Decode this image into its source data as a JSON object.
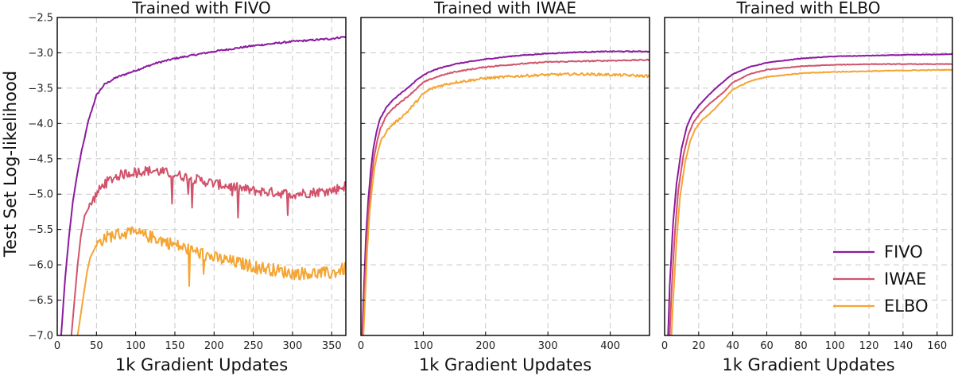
{
  "figure": {
    "ylabel": "Test Set Log-likelihood",
    "colors": {
      "FIVO": "#8b1a9e",
      "IWAE": "#d1536b",
      "ELBO": "#f5a533"
    }
  },
  "chart_data": [
    {
      "type": "line",
      "title": "Trained with FIVO",
      "xlabel": "1k Gradient Updates",
      "xlim": [
        0,
        368
      ],
      "ylim": [
        -7.0,
        -2.5
      ],
      "xticks": [
        0,
        50,
        100,
        150,
        200,
        250,
        300,
        350
      ],
      "yticks": [
        -7.0,
        -6.5,
        -6.0,
        -5.5,
        -5.0,
        -4.5,
        -4.0,
        -3.5,
        -3.0,
        -2.5
      ],
      "grid": true,
      "series": [
        {
          "name": "FIVO",
          "x": [
            5,
            10,
            15,
            20,
            25,
            30,
            40,
            50,
            60,
            75,
            100,
            125,
            150,
            200,
            250,
            300,
            350,
            368
          ],
          "y": [
            -7.0,
            -6.2,
            -5.6,
            -5.1,
            -4.75,
            -4.45,
            -3.95,
            -3.6,
            -3.45,
            -3.35,
            -3.25,
            -3.15,
            -3.08,
            -2.98,
            -2.9,
            -2.84,
            -2.8,
            -2.77
          ]
        },
        {
          "name": "IWAE",
          "x": [
            18,
            22,
            26,
            30,
            35,
            40,
            50,
            60,
            75,
            90,
            110,
            125,
            150,
            200,
            250,
            300,
            350,
            368
          ],
          "y": [
            -7.0,
            -6.5,
            -6.0,
            -5.6,
            -5.3,
            -5.2,
            -5.0,
            -4.85,
            -4.75,
            -4.7,
            -4.67,
            -4.67,
            -4.72,
            -4.85,
            -4.95,
            -5.0,
            -4.95,
            -4.88
          ]
        },
        {
          "name": "ELBO",
          "x": [
            26,
            30,
            34,
            38,
            42,
            50,
            60,
            75,
            90,
            105,
            125,
            150,
            200,
            250,
            300,
            350,
            368
          ],
          "y": [
            -7.0,
            -6.7,
            -6.4,
            -6.1,
            -5.9,
            -5.72,
            -5.62,
            -5.57,
            -5.55,
            -5.57,
            -5.62,
            -5.72,
            -5.9,
            -6.02,
            -6.12,
            -6.12,
            -6.05
          ]
        }
      ]
    },
    {
      "type": "line",
      "title": "Trained with IWAE",
      "xlabel": "1k Gradient Updates",
      "xlim": [
        0,
        463
      ],
      "ylim": [
        -7.0,
        -2.5
      ],
      "xticks": [
        0,
        100,
        200,
        300,
        400
      ],
      "grid": true,
      "series": [
        {
          "name": "FIVO",
          "x": [
            2,
            5,
            8,
            12,
            16,
            20,
            25,
            30,
            40,
            50,
            60,
            75,
            90,
            100,
            110,
            125,
            150,
            200,
            250,
            300,
            350,
            400,
            463
          ],
          "y": [
            -7.0,
            -6.3,
            -5.6,
            -5.05,
            -4.65,
            -4.35,
            -4.12,
            -3.95,
            -3.78,
            -3.68,
            -3.6,
            -3.5,
            -3.38,
            -3.32,
            -3.27,
            -3.22,
            -3.16,
            -3.09,
            -3.04,
            -3.01,
            -2.99,
            -2.98,
            -2.98
          ]
        },
        {
          "name": "IWAE",
          "x": [
            3,
            6,
            9,
            13,
            17,
            21,
            26,
            31,
            40,
            50,
            60,
            75,
            90,
            100,
            110,
            125,
            150,
            200,
            250,
            300,
            350,
            400,
            463
          ],
          "y": [
            -7.0,
            -6.35,
            -5.7,
            -5.15,
            -4.78,
            -4.48,
            -4.25,
            -4.08,
            -3.9,
            -3.8,
            -3.72,
            -3.62,
            -3.5,
            -3.42,
            -3.38,
            -3.33,
            -3.27,
            -3.2,
            -3.16,
            -3.13,
            -3.12,
            -3.11,
            -3.1
          ]
        },
        {
          "name": "ELBO",
          "x": [
            4,
            7,
            10,
            14,
            18,
            22,
            27,
            32,
            40,
            50,
            60,
            75,
            90,
            100,
            110,
            125,
            150,
            200,
            250,
            300,
            350,
            400,
            463
          ],
          "y": [
            -7.0,
            -6.4,
            -5.8,
            -5.25,
            -4.9,
            -4.62,
            -4.4,
            -4.25,
            -4.12,
            -4.02,
            -3.95,
            -3.83,
            -3.68,
            -3.58,
            -3.52,
            -3.47,
            -3.42,
            -3.36,
            -3.33,
            -3.31,
            -3.3,
            -3.31,
            -3.33
          ]
        }
      ]
    },
    {
      "type": "line",
      "title": "Trained with ELBO",
      "xlabel": "1k Gradient Updates",
      "xlim": [
        0,
        169
      ],
      "ylim": [
        -7.0,
        -2.5
      ],
      "xticks": [
        0,
        20,
        40,
        60,
        80,
        100,
        120,
        140,
        160
      ],
      "grid": true,
      "legend": {
        "position": "bottom-right",
        "entries": [
          "FIVO",
          "IWAE",
          "ELBO"
        ]
      },
      "series": [
        {
          "name": "FIVO",
          "x": [
            2,
            3,
            5,
            7,
            10,
            13,
            16,
            20,
            25,
            30,
            35,
            40,
            50,
            60,
            80,
            100,
            120,
            140,
            169
          ],
          "y": [
            -7.0,
            -6.3,
            -5.4,
            -4.85,
            -4.35,
            -4.05,
            -3.88,
            -3.75,
            -3.62,
            -3.5,
            -3.4,
            -3.3,
            -3.2,
            -3.14,
            -3.08,
            -3.05,
            -3.04,
            -3.03,
            -3.02
          ]
        },
        {
          "name": "IWAE",
          "x": [
            3,
            4,
            6,
            8,
            11,
            14,
            17,
            21,
            26,
            30,
            35,
            40,
            50,
            60,
            80,
            100,
            120,
            140,
            169
          ],
          "y": [
            -7.0,
            -6.4,
            -5.55,
            -4.95,
            -4.45,
            -4.15,
            -3.98,
            -3.85,
            -3.73,
            -3.65,
            -3.55,
            -3.42,
            -3.3,
            -3.24,
            -3.19,
            -3.17,
            -3.16,
            -3.16,
            -3.16
          ]
        },
        {
          "name": "ELBO",
          "x": [
            4,
            5,
            7,
            9,
            12,
            15,
            18,
            22,
            27,
            30,
            35,
            40,
            50,
            60,
            80,
            100,
            120,
            140,
            169
          ],
          "y": [
            -7.0,
            -6.5,
            -5.65,
            -5.05,
            -4.55,
            -4.25,
            -4.08,
            -3.95,
            -3.85,
            -3.78,
            -3.65,
            -3.52,
            -3.4,
            -3.34,
            -3.29,
            -3.27,
            -3.26,
            -3.25,
            -3.24
          ]
        }
      ]
    }
  ]
}
